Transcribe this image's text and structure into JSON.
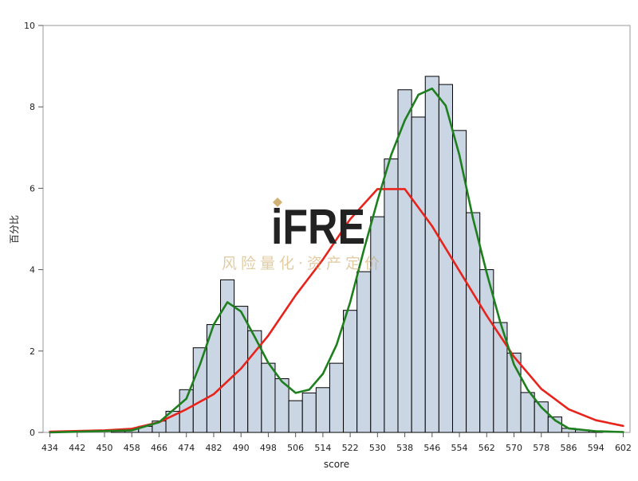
{
  "chart_data": {
    "type": "bar",
    "title": "",
    "xlabel": "score",
    "ylabel": "百分比",
    "bin_width": 4,
    "xlim": [
      432,
      604
    ],
    "ylim": [
      0,
      10
    ],
    "x_ticks": [
      434,
      442,
      450,
      458,
      466,
      474,
      482,
      490,
      498,
      506,
      514,
      522,
      530,
      538,
      546,
      554,
      562,
      570,
      578,
      586,
      594,
      602
    ],
    "y_ticks": [
      0,
      2,
      4,
      6,
      8,
      10
    ],
    "bins": [
      {
        "center": 454,
        "value": 0.03
      },
      {
        "center": 458,
        "value": 0.08
      },
      {
        "center": 462,
        "value": 0.15
      },
      {
        "center": 466,
        "value": 0.28
      },
      {
        "center": 470,
        "value": 0.52
      },
      {
        "center": 474,
        "value": 1.05
      },
      {
        "center": 478,
        "value": 2.08
      },
      {
        "center": 482,
        "value": 2.65
      },
      {
        "center": 486,
        "value": 3.75
      },
      {
        "center": 490,
        "value": 3.1
      },
      {
        "center": 494,
        "value": 2.5
      },
      {
        "center": 498,
        "value": 1.7
      },
      {
        "center": 502,
        "value": 1.32
      },
      {
        "center": 506,
        "value": 0.78
      },
      {
        "center": 510,
        "value": 0.97
      },
      {
        "center": 514,
        "value": 1.1
      },
      {
        "center": 518,
        "value": 1.7
      },
      {
        "center": 522,
        "value": 3.0
      },
      {
        "center": 526,
        "value": 3.95
      },
      {
        "center": 530,
        "value": 5.3
      },
      {
        "center": 534,
        "value": 6.72
      },
      {
        "center": 538,
        "value": 8.42
      },
      {
        "center": 542,
        "value": 7.75
      },
      {
        "center": 546,
        "value": 8.75
      },
      {
        "center": 550,
        "value": 8.55
      },
      {
        "center": 554,
        "value": 7.42
      },
      {
        "center": 558,
        "value": 5.4
      },
      {
        "center": 562,
        "value": 4.0
      },
      {
        "center": 566,
        "value": 2.7
      },
      {
        "center": 570,
        "value": 1.95
      },
      {
        "center": 574,
        "value": 0.98
      },
      {
        "center": 578,
        "value": 0.75
      },
      {
        "center": 582,
        "value": 0.38
      },
      {
        "center": 586,
        "value": 0.1
      },
      {
        "center": 590,
        "value": 0.06
      },
      {
        "center": 594,
        "value": 0.04
      }
    ],
    "series": [
      {
        "color": "#e8231b",
        "points": [
          [
            434,
            0.02
          ],
          [
            450,
            0.05
          ],
          [
            458,
            0.09
          ],
          [
            466,
            0.25
          ],
          [
            474,
            0.57
          ],
          [
            482,
            0.94
          ],
          [
            490,
            1.57
          ],
          [
            498,
            2.38
          ],
          [
            506,
            3.37
          ],
          [
            514,
            4.25
          ],
          [
            522,
            5.24
          ],
          [
            530,
            5.98
          ],
          [
            538,
            5.98
          ],
          [
            546,
            5.07
          ],
          [
            554,
            3.97
          ],
          [
            562,
            2.87
          ],
          [
            570,
            1.86
          ],
          [
            578,
            1.07
          ],
          [
            586,
            0.57
          ],
          [
            594,
            0.3
          ],
          [
            602,
            0.16
          ]
        ]
      },
      {
        "color": "#1e7f1e",
        "points": [
          [
            434,
            0.0
          ],
          [
            458,
            0.05
          ],
          [
            466,
            0.25
          ],
          [
            474,
            0.83
          ],
          [
            478,
            1.67
          ],
          [
            482,
            2.65
          ],
          [
            486,
            3.2
          ],
          [
            490,
            2.97
          ],
          [
            494,
            2.35
          ],
          [
            498,
            1.71
          ],
          [
            502,
            1.25
          ],
          [
            506,
            0.97
          ],
          [
            510,
            1.05
          ],
          [
            514,
            1.44
          ],
          [
            518,
            2.15
          ],
          [
            522,
            3.2
          ],
          [
            526,
            4.48
          ],
          [
            530,
            5.69
          ],
          [
            534,
            6.82
          ],
          [
            538,
            7.67
          ],
          [
            542,
            8.3
          ],
          [
            546,
            8.45
          ],
          [
            550,
            8.03
          ],
          [
            554,
            6.82
          ],
          [
            558,
            5.25
          ],
          [
            562,
            3.92
          ],
          [
            566,
            2.7
          ],
          [
            570,
            1.67
          ],
          [
            574,
            1.05
          ],
          [
            578,
            0.62
          ],
          [
            582,
            0.3
          ],
          [
            586,
            0.1
          ],
          [
            594,
            0.03
          ],
          [
            602,
            0.01
          ]
        ]
      }
    ]
  },
  "watermark": {
    "brand": "iFRE",
    "tagline": "风险量化·资产定价"
  }
}
